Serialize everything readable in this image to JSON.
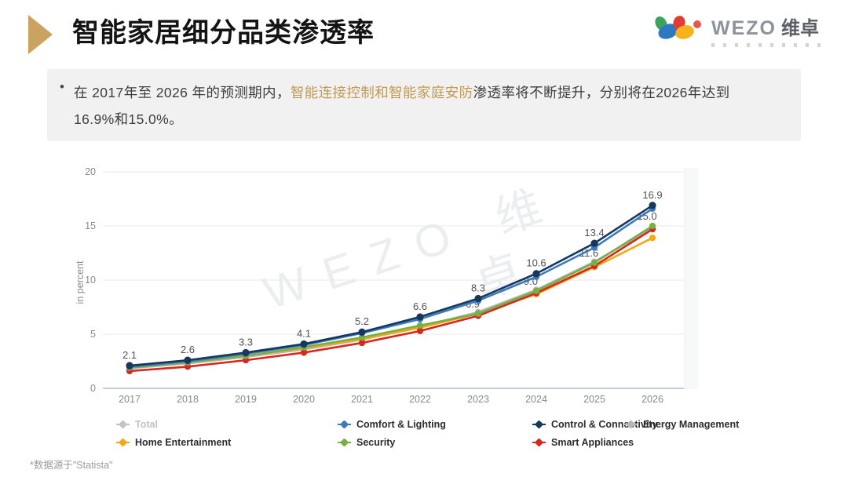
{
  "header": {
    "title": "智能家居细分品类渗透率",
    "logo": {
      "brand": "WEZO",
      "brand_cn": "维卓"
    }
  },
  "insight": {
    "bullet": "•",
    "text_before": "在 2017年至 2026 年的预测期内，",
    "highlight": "智能连接控制和智能家庭安防",
    "text_after": "渗透率将不断提升，分别将在2026年达到",
    "line2": "16.9%和15.0%。"
  },
  "colors": {
    "accent_gold": "#c49a53",
    "title_arrow": "#c9a35f",
    "axis_text": "#8a8a8a",
    "point_label": "#525252"
  },
  "chart_data": {
    "type": "line",
    "x": [
      2017,
      2018,
      2019,
      2020,
      2021,
      2022,
      2023,
      2024,
      2025,
      2026
    ],
    "ylabel": "in percent",
    "ylim": [
      0,
      20
    ],
    "yticks": [
      0,
      5,
      10,
      15,
      20
    ],
    "grid": true,
    "legend_position": "bottom",
    "watermark": {
      "line1": "WEZO 维",
      "line2": "卓"
    },
    "series": [
      {
        "name": "Total",
        "color": "#c4c4c4",
        "muted": true,
        "values": null,
        "z": 0
      },
      {
        "name": "Comfort & Lighting",
        "color": "#3a7abf",
        "values": [
          2.0,
          2.5,
          3.2,
          4.0,
          5.1,
          6.4,
          8.1,
          10.3,
          13.0,
          16.6
        ],
        "z": 5
      },
      {
        "name": "Control & Connectivity",
        "color": "#17375d",
        "values": [
          2.1,
          2.6,
          3.3,
          4.1,
          5.2,
          6.6,
          8.3,
          10.6,
          13.4,
          16.9
        ],
        "z": 6,
        "point_labels": {
          "start_index": 0,
          "position": "above"
        }
      },
      {
        "name": "Energy Management",
        "color": "#b5b5b5",
        "values": [
          1.85,
          2.3,
          2.9,
          3.6,
          4.5,
          5.7,
          7.05,
          9.1,
          11.7,
          14.8
        ],
        "z": 1
      },
      {
        "name": "Home Entertainment",
        "color": "#f3a816",
        "values": [
          1.9,
          2.4,
          3.0,
          3.7,
          4.55,
          5.6,
          6.9,
          8.7,
          11.2,
          13.9
        ],
        "z": 2
      },
      {
        "name": "Security",
        "color": "#76b043",
        "values": [
          1.9,
          2.4,
          3.0,
          3.8,
          4.7,
          5.8,
          6.9,
          9.0,
          11.6,
          15.0
        ],
        "z": 4,
        "point_labels": {
          "start_index": 6,
          "position": "above_left"
        }
      },
      {
        "name": "Smart Appliances",
        "color": "#d7281f",
        "values": [
          1.6,
          2.0,
          2.6,
          3.3,
          4.2,
          5.3,
          6.7,
          8.8,
          11.3,
          14.7
        ],
        "z": 3
      }
    ]
  },
  "footnote": "*数据源于\"Statista\""
}
